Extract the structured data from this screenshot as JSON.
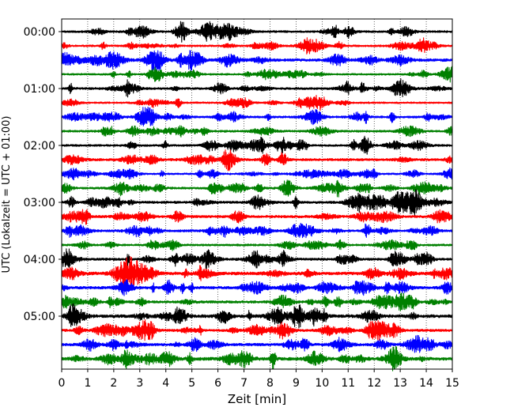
{
  "chart_data": {
    "type": "line",
    "xlabel": "Zeit  [min]",
    "ylabel": "UTC (Lokalzeit = UTC + 01:00)",
    "xlim": [
      0,
      15
    ],
    "x_ticks": [
      0,
      1,
      2,
      3,
      4,
      5,
      6,
      7,
      8,
      9,
      10,
      11,
      12,
      13,
      14,
      15
    ],
    "y_tick_labels": [
      "00:00",
      "01:00",
      "02:00",
      "03:00",
      "04:00",
      "05:00"
    ],
    "y_tick_rows": [
      0,
      4,
      8,
      12,
      16,
      20
    ],
    "row_count": 24,
    "row_minutes": 15,
    "vertical_grid": true,
    "grid_style": "dotted",
    "colors": [
      "#000000",
      "#ff0000",
      "#0000ff",
      "#008000"
    ],
    "series": [
      {
        "start": "00:00",
        "amplitude": 0.2
      },
      {
        "start": "00:15",
        "amplitude": 0.18
      },
      {
        "start": "00:30",
        "amplitude": 0.26
      },
      {
        "start": "00:45",
        "amplitude": 0.17
      },
      {
        "start": "01:00",
        "amplitude": 0.21
      },
      {
        "start": "01:15",
        "amplitude": 0.17
      },
      {
        "start": "01:30",
        "amplitude": 0.2
      },
      {
        "start": "01:45",
        "amplitude": 0.2
      },
      {
        "start": "02:00",
        "amplitude": 0.2
      },
      {
        "start": "02:15",
        "amplitude": 0.24
      },
      {
        "start": "02:30",
        "amplitude": 0.17
      },
      {
        "start": "02:45",
        "amplitude": 0.2
      },
      {
        "start": "03:00",
        "amplitude": 0.24
      },
      {
        "start": "03:15",
        "amplitude": 0.25
      },
      {
        "start": "03:30",
        "amplitude": 0.22
      },
      {
        "start": "03:45",
        "amplitude": 0.19
      },
      {
        "start": "04:00",
        "amplitude": 0.23
      },
      {
        "start": "04:15",
        "amplitude": 0.3
      },
      {
        "start": "04:30",
        "amplitude": 0.26
      },
      {
        "start": "04:45",
        "amplitude": 0.24
      },
      {
        "start": "05:00",
        "amplitude": 0.3
      },
      {
        "start": "05:15",
        "amplitude": 0.24
      },
      {
        "start": "05:30",
        "amplitude": 0.26
      },
      {
        "start": "05:45",
        "amplitude": 0.3
      }
    ]
  }
}
